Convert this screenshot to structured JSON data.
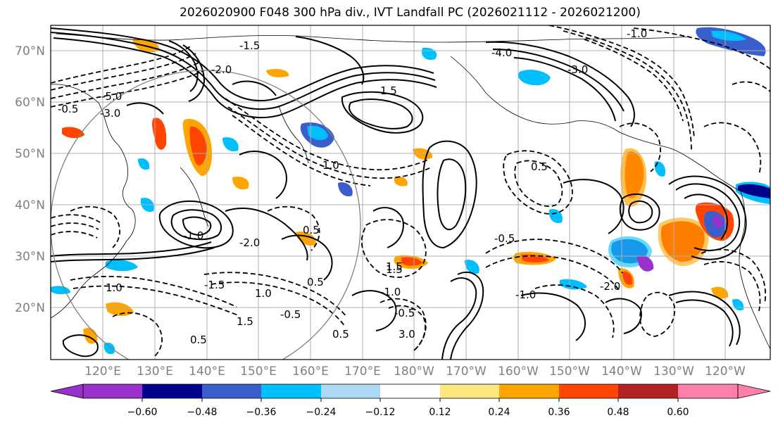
{
  "title": "2026020900 F048 300 hPa div., IVT Landfall PC (2026021112 - 2026021200)",
  "map": {
    "lat_labels": [
      "70°N",
      "60°N",
      "50°N",
      "40°N",
      "30°N",
      "20°N"
    ],
    "lon_labels": [
      "120°E",
      "130°E",
      "140°E",
      "150°E",
      "160°E",
      "170°E",
      "180°W",
      "170°W",
      "160°W",
      "150°W",
      "140°W",
      "130°W",
      "120°W"
    ],
    "contour_labels": [
      "-1.0",
      "-5.0",
      "-3.0",
      "-0.5",
      "-1.5",
      "-4.0",
      "-3.0",
      "-2.0",
      "1.5",
      "1.0",
      "0.5",
      "0.5",
      "-0.5",
      "-1.0",
      "-2.0",
      "1.5",
      "-1.5",
      "0.5",
      "-0.5",
      "0.5",
      "1.0",
      "-1.0",
      "-0.5",
      "1.5",
      "-1.0",
      "0.5",
      "-2.0",
      "1.0",
      "3.0",
      "1.5"
    ],
    "colors": {
      "negative_strong": "#9932cc",
      "negative_dark": "#00008b",
      "negative_mid": "#3a5fcd",
      "negative_cyan": "#00bfff",
      "negative_light": "#add8f6",
      "positive_light": "#ffe680",
      "positive_orange": "#ffa500",
      "positive_red": "#ff4500",
      "positive_dark": "#b22222",
      "positive_pink": "#ff7fa8",
      "gridline": "#b0b0b0",
      "contour": "#000000"
    }
  },
  "colorbar": {
    "ticks": [
      "−0.60",
      "−0.48",
      "−0.36",
      "−0.24",
      "−0.12",
      "0.12",
      "0.24",
      "0.36",
      "0.48",
      "0.60"
    ],
    "colors": [
      "#9932cc",
      "#00008b",
      "#3a5fcd",
      "#00bfff",
      "#add8f6",
      "#ffffff",
      "#ffe680",
      "#ffa500",
      "#ff4500",
      "#b22222",
      "#ff7fa8"
    ]
  }
}
